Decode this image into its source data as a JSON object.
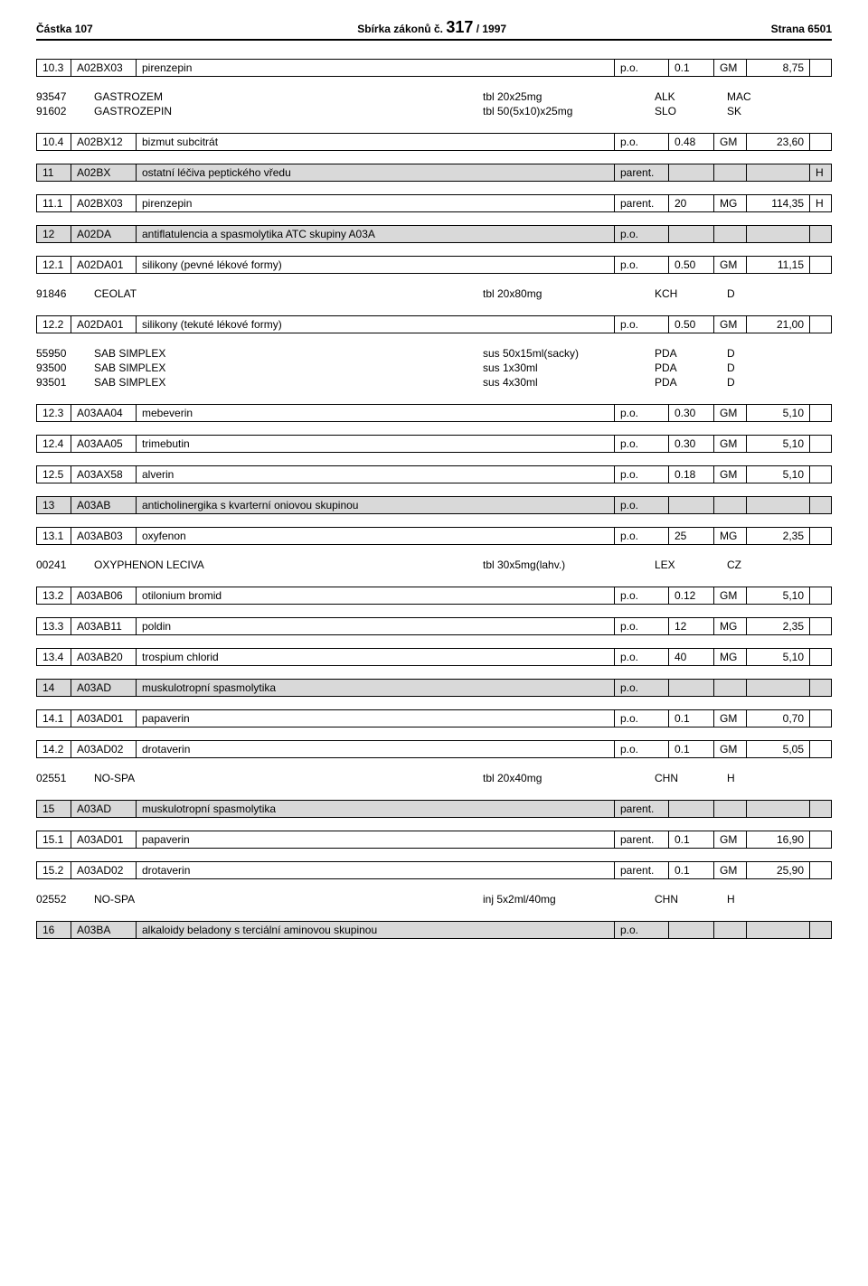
{
  "header": {
    "left": "Částka 107",
    "center_prefix": "Sbírka zákonů č. ",
    "center_num": "317",
    "center_suffix": " / 1997",
    "right": "Strana 6501"
  },
  "rows": [
    {
      "type": "entry",
      "idx": "10.3",
      "code": "A02BX03",
      "name": "pirenzepin",
      "unit": "p.o.",
      "dose": "0.1",
      "du": "GM",
      "price": "8,75",
      "flag": ""
    },
    {
      "type": "products",
      "items": [
        {
          "no": "93547",
          "name": "GASTROZEM",
          "blank": "",
          "form": "tbl 20x25mg",
          "mfr": "ALK",
          "cc": "MAC"
        },
        {
          "no": "91602",
          "name": "GASTROZEPIN",
          "blank": "",
          "form": "tbl 50(5x10)x25mg",
          "mfr": "SLO",
          "cc": "SK"
        }
      ]
    },
    {
      "type": "entry",
      "idx": "10.4",
      "code": "A02BX12",
      "name": "bizmut subcitrát",
      "unit": "p.o.",
      "dose": "0.48",
      "du": "GM",
      "price": "23,60",
      "flag": ""
    },
    {
      "type": "group",
      "idx": "11",
      "code": "A02BX",
      "name": "ostatní léčiva peptického vředu",
      "unit": "parent.",
      "dose": "",
      "du": "",
      "price": "",
      "flag": "H"
    },
    {
      "type": "entry",
      "idx": "11.1",
      "code": "A02BX03",
      "name": "pirenzepin",
      "unit": "parent.",
      "dose": "20",
      "du": "MG",
      "price": "114,35",
      "flag": "H"
    },
    {
      "type": "group",
      "idx": "12",
      "code": "A02DA",
      "name": "antiflatulencia a spasmolytika ATC skupiny A03A",
      "unit": "p.o.",
      "dose": "",
      "du": "",
      "price": "",
      "flag": ""
    },
    {
      "type": "entry",
      "idx": "12.1",
      "code": "A02DA01",
      "name": "silikony (pevné lékové formy)",
      "unit": "p.o.",
      "dose": "0.50",
      "du": "GM",
      "price": "11,15",
      "flag": ""
    },
    {
      "type": "products",
      "items": [
        {
          "no": "91846",
          "name": "CEOLAT",
          "blank": "",
          "form": "tbl 20x80mg",
          "mfr": "KCH",
          "cc": "D"
        }
      ]
    },
    {
      "type": "entry",
      "idx": "12.2",
      "code": "A02DA01",
      "name": "silikony (tekuté lékové formy)",
      "unit": "p.o.",
      "dose": "0.50",
      "du": "GM",
      "price": "21,00",
      "flag": ""
    },
    {
      "type": "products",
      "items": [
        {
          "no": "55950",
          "name": "SAB SIMPLEX",
          "blank": "",
          "form": "sus 50x15ml(sacky)",
          "mfr": "PDA",
          "cc": "D"
        },
        {
          "no": "93500",
          "name": "SAB SIMPLEX",
          "blank": "",
          "form": "sus 1x30ml",
          "mfr": "PDA",
          "cc": "D"
        },
        {
          "no": "93501",
          "name": "SAB SIMPLEX",
          "blank": "",
          "form": "sus 4x30ml",
          "mfr": "PDA",
          "cc": "D"
        }
      ]
    },
    {
      "type": "entry",
      "idx": "12.3",
      "code": "A03AA04",
      "name": "mebeverin",
      "unit": "p.o.",
      "dose": "0.30",
      "du": "GM",
      "price": "5,10",
      "flag": ""
    },
    {
      "type": "entry",
      "idx": "12.4",
      "code": "A03AA05",
      "name": "trimebutin",
      "unit": "p.o.",
      "dose": "0.30",
      "du": "GM",
      "price": "5,10",
      "flag": ""
    },
    {
      "type": "entry",
      "idx": "12.5",
      "code": "A03AX58",
      "name": "alverin",
      "unit": "p.o.",
      "dose": "0.18",
      "du": "GM",
      "price": "5,10",
      "flag": ""
    },
    {
      "type": "group",
      "idx": "13",
      "code": "A03AB",
      "name": "anticholinergika s kvarterní oniovou skupinou",
      "unit": "p.o.",
      "dose": "",
      "du": "",
      "price": "",
      "flag": ""
    },
    {
      "type": "entry",
      "idx": "13.1",
      "code": "A03AB03",
      "name": "oxyfenon",
      "unit": "p.o.",
      "dose": "25",
      "du": "MG",
      "price": "2,35",
      "flag": ""
    },
    {
      "type": "products",
      "items": [
        {
          "no": "00241",
          "name": "OXYPHENON LECIVA",
          "blank": "",
          "form": "tbl 30x5mg(lahv.)",
          "mfr": "LEX",
          "cc": "CZ"
        }
      ]
    },
    {
      "type": "entry",
      "idx": "13.2",
      "code": "A03AB06",
      "name": "otilonium bromid",
      "unit": "p.o.",
      "dose": "0.12",
      "du": "GM",
      "price": "5,10",
      "flag": ""
    },
    {
      "type": "entry",
      "idx": "13.3",
      "code": "A03AB11",
      "name": "poldin",
      "unit": "p.o.",
      "dose": "12",
      "du": "MG",
      "price": "2,35",
      "flag": ""
    },
    {
      "type": "entry",
      "idx": "13.4",
      "code": "A03AB20",
      "name": "trospium chlorid",
      "unit": "p.o.",
      "dose": "40",
      "du": "MG",
      "price": "5,10",
      "flag": ""
    },
    {
      "type": "group",
      "idx": "14",
      "code": "A03AD",
      "name": "muskulotropní spasmolytika",
      "unit": "p.o.",
      "dose": "",
      "du": "",
      "price": "",
      "flag": ""
    },
    {
      "type": "entry",
      "idx": "14.1",
      "code": "A03AD01",
      "name": "papaverin",
      "unit": "p.o.",
      "dose": "0.1",
      "du": "GM",
      "price": "0,70",
      "flag": ""
    },
    {
      "type": "entry",
      "idx": "14.2",
      "code": "A03AD02",
      "name": "drotaverin",
      "unit": "p.o.",
      "dose": "0.1",
      "du": "GM",
      "price": "5,05",
      "flag": ""
    },
    {
      "type": "products",
      "items": [
        {
          "no": "02551",
          "name": "NO-SPA",
          "blank": "",
          "form": "tbl 20x40mg",
          "mfr": "CHN",
          "cc": "H"
        }
      ]
    },
    {
      "type": "group",
      "idx": "15",
      "code": "A03AD",
      "name": "muskulotropní spasmolytika",
      "unit": "parent.",
      "dose": "",
      "du": "",
      "price": "",
      "flag": ""
    },
    {
      "type": "entry",
      "idx": "15.1",
      "code": "A03AD01",
      "name": "papaverin",
      "unit": "parent.",
      "dose": "0.1",
      "du": "GM",
      "price": "16,90",
      "flag": ""
    },
    {
      "type": "entry",
      "idx": "15.2",
      "code": "A03AD02",
      "name": "drotaverin",
      "unit": "parent.",
      "dose": "0.1",
      "du": "GM",
      "price": "25,90",
      "flag": ""
    },
    {
      "type": "products",
      "items": [
        {
          "no": "02552",
          "name": "NO-SPA",
          "blank": "",
          "form": "inj 5x2ml/40mg",
          "mfr": "CHN",
          "cc": "H"
        }
      ]
    },
    {
      "type": "group",
      "idx": "16",
      "code": "A03BA",
      "name": "alkaloidy beladony s terciální aminovou skupinou",
      "unit": "p.o.",
      "dose": "",
      "du": "",
      "price": "",
      "flag": ""
    }
  ]
}
